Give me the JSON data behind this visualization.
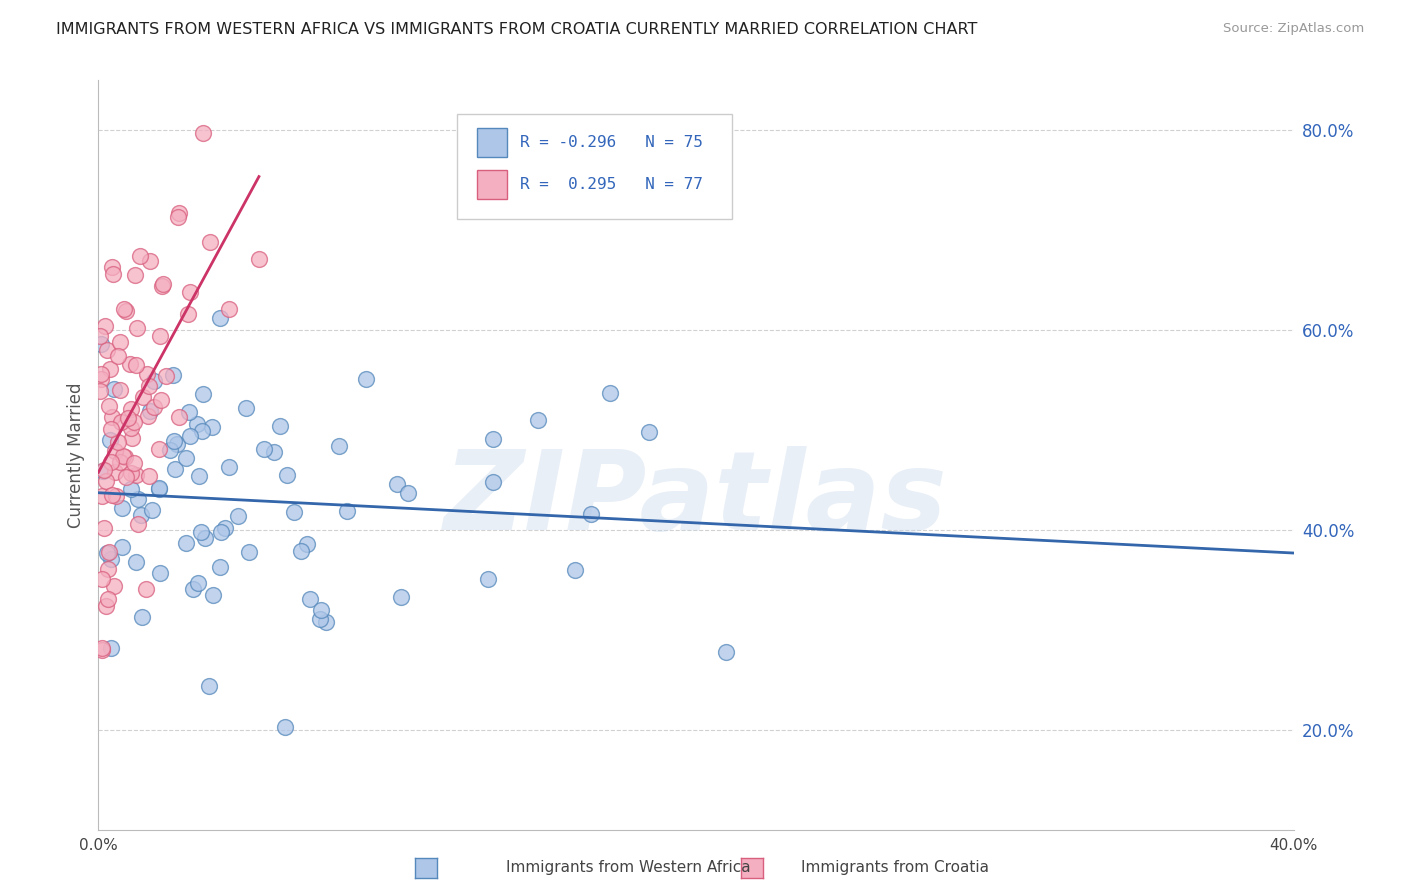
{
  "title": "IMMIGRANTS FROM WESTERN AFRICA VS IMMIGRANTS FROM CROATIA CURRENTLY MARRIED CORRELATION CHART",
  "source": "Source: ZipAtlas.com",
  "ylabel": "Currently Married",
  "xlim": [
    0.0,
    0.4
  ],
  "ylim": [
    0.1,
    0.85
  ],
  "yticks": [
    0.2,
    0.4,
    0.6,
    0.8
  ],
  "ytick_labels": [
    "20.0%",
    "40.0%",
    "60.0%",
    "80.0%"
  ],
  "xticks": [
    0.0,
    0.1,
    0.2,
    0.3,
    0.4
  ],
  "xtick_labels": [
    "0.0%",
    "",
    "",
    "",
    "40.0%"
  ],
  "series": [
    {
      "name": "Immigrants from Western Africa",
      "color": "#aec6e8",
      "edge_color": "#5588bb",
      "R": -0.296,
      "N": 75,
      "line_color": "#3366aa"
    },
    {
      "name": "Immigrants from Croatia",
      "color": "#f4afc0",
      "edge_color": "#d95f7e",
      "R": 0.295,
      "N": 77,
      "line_color": "#cc3366"
    }
  ],
  "watermark": "ZIPatlas",
  "background_color": "#ffffff",
  "grid_color": "#cccccc",
  "title_color": "#222222",
  "axis_color": "#bbbbbb",
  "legend_box_color": "#ffffff",
  "legend_border_color": "#cccccc",
  "legend_text_color": "#3366bb",
  "ytick_color": "#3366bb",
  "xtick_color": "#444444"
}
